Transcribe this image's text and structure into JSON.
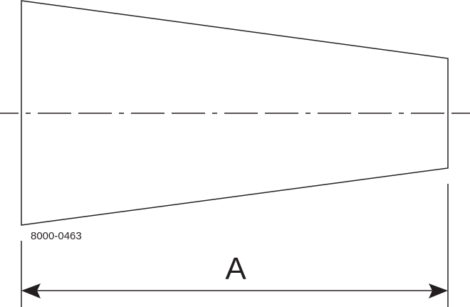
{
  "drawing": {
    "part_number": "8000-0463",
    "dimension_label": "A",
    "line_color": "#231f20"
  }
}
